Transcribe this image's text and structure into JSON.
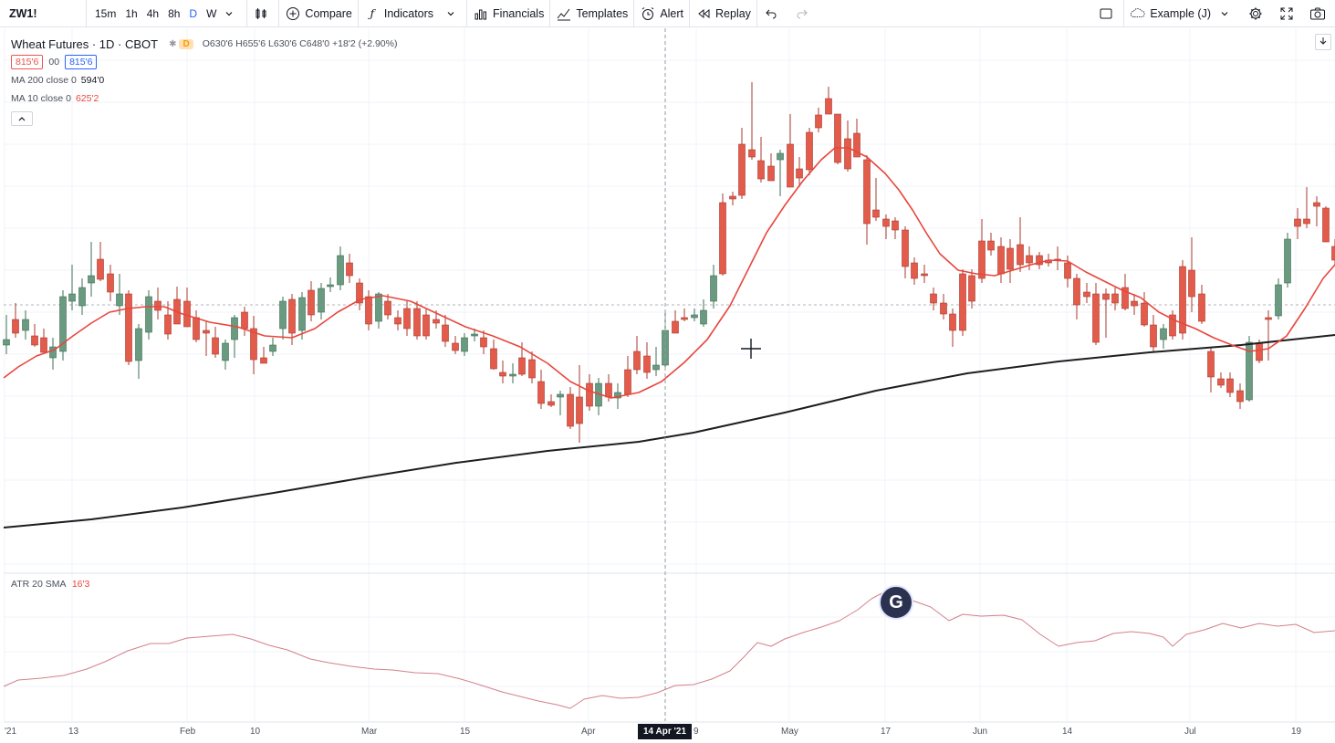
{
  "toolbar": {
    "symbol": "ZW1!",
    "intervals": [
      "15m",
      "1h",
      "4h",
      "8h",
      "D",
      "W"
    ],
    "compare_label": "Compare",
    "indicators_label": "Indicators",
    "financials_label": "Financials",
    "templates_label": "Templates",
    "alert_label": "Alert",
    "replay_label": "Replay",
    "layout_name": "Example (J)"
  },
  "legend": {
    "title": "Wheat Futures · 1D · CBOT",
    "status": "D",
    "ohlc": "O630'6 H655'6 L630'6 C648'0 +18'2 (+2.90%)",
    "bid": "815'6",
    "spread": "00",
    "ask": "815'6",
    "ma200_label": "MA 200 close 0",
    "ma200_value": "594'0",
    "ma10_label": "MA 10 close 0",
    "ma10_value": "625'2"
  },
  "atr": {
    "label": "ATR 20 SMA",
    "value": "16'3"
  },
  "x_axis": {
    "labels": [
      "'21",
      "13",
      "Feb",
      "10",
      "Mar",
      "15",
      "Apr",
      "9",
      "May",
      "17",
      "Jun",
      "14",
      "Jul",
      "19"
    ],
    "crosshair_label": "14 Apr '21"
  },
  "colors": {
    "up": "#6a9a7f",
    "up_border": "#3e6f56",
    "down": "#e35b4b",
    "down_border": "#a8392c",
    "ma10": "#e8463c",
    "ma200": "#1e1e1e",
    "atr": "#d3818a"
  },
  "chart_data": {
    "type": "candlestick",
    "series": [
      {
        "name": "MA 200 close 0"
      },
      {
        "name": "MA 10 close 0"
      },
      {
        "name": "ATR 20 SMA"
      }
    ]
  }
}
